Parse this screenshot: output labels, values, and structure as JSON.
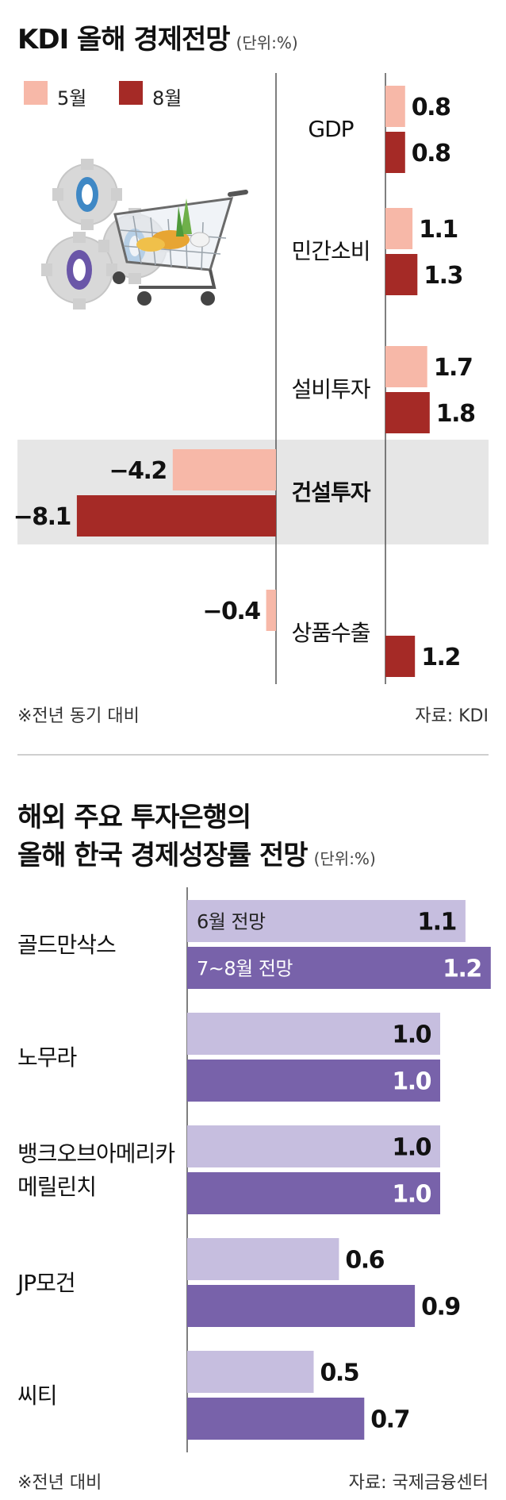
{
  "kdi": {
    "title": "KDI 올해 경제전망",
    "unit": "(단위:%)",
    "legend": [
      {
        "label": "5월",
        "color": "#F7B8A8"
      },
      {
        "label": "8월",
        "color": "#A52A26"
      }
    ],
    "footnote_left": "※전년 동기 대비",
    "source": "자료: KDI"
  },
  "banks": {
    "title_line1": "해외 주요 투자은행의",
    "title_line2": "올해 한국 경제성장률 전망",
    "unit": "(단위:%)",
    "series_labels": [
      "6월 전망",
      "7~8월 전망"
    ],
    "colors": {
      "june": "#C6BEDF",
      "julaug": "#7862AA"
    },
    "footnote_left": "※전년 대비",
    "source": "자료: 국제금융센터"
  },
  "chart_data": [
    {
      "type": "bar",
      "title": "KDI 올해 경제전망",
      "unit": "(단위:%)",
      "categories": [
        "GDP",
        "민간소비",
        "설비투자",
        "건설투자",
        "상품수출"
      ],
      "highlight": "건설투자",
      "series": [
        {
          "name": "5월",
          "values": [
            0.8,
            1.1,
            1.7,
            -4.2,
            -0.4
          ]
        },
        {
          "name": "8월",
          "values": [
            0.8,
            1.3,
            1.8,
            -8.1,
            1.2
          ]
        }
      ]
    },
    {
      "type": "bar",
      "title": "해외 주요 투자은행의 올해 한국 경제성장률 전망",
      "unit": "(단위:%)",
      "categories": [
        "골드만삭스",
        "노무라",
        "뱅크오브아메리카 메릴린치",
        "JP모건",
        "씨티"
      ],
      "series": [
        {
          "name": "6월 전망",
          "values": [
            1.1,
            1.0,
            1.0,
            0.6,
            0.5
          ]
        },
        {
          "name": "7~8월 전망",
          "values": [
            1.2,
            1.0,
            1.0,
            0.9,
            0.7
          ]
        }
      ]
    }
  ]
}
